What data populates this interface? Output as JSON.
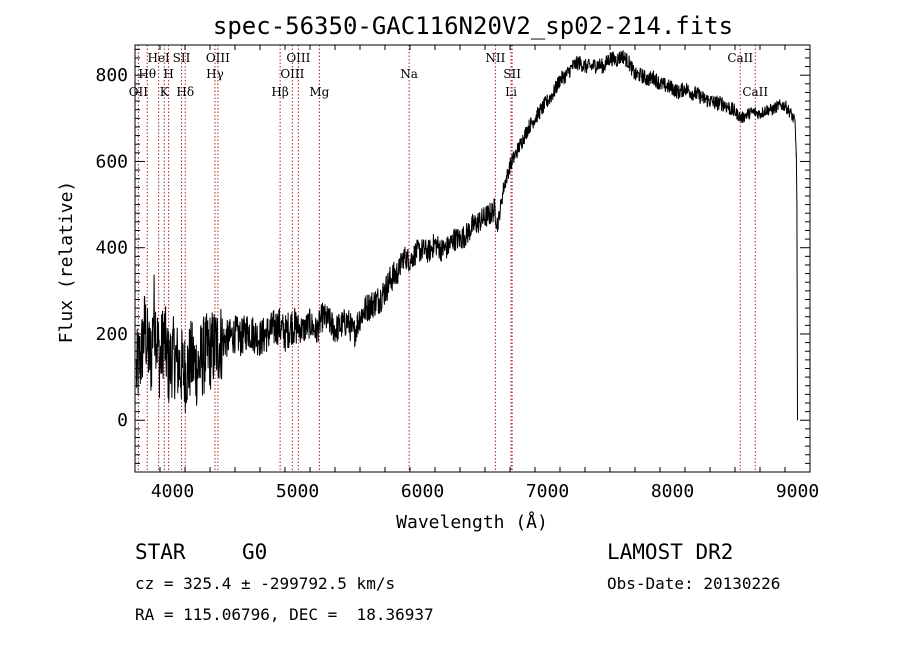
{
  "chart_data": {
    "type": "line",
    "title": "spec-56350-GAC116N20V2_sp02-214.fits",
    "xlabel": "Wavelength (Å)",
    "ylabel": "Flux (relative)",
    "xlim": [
      3700,
      9100
    ],
    "ylim": [
      -120,
      870
    ],
    "xticks": [
      4000,
      5000,
      6000,
      7000,
      8000,
      9000
    ],
    "yticks": [
      0,
      200,
      400,
      600,
      800
    ],
    "x_tick_labels": [
      "4000",
      "5000",
      "6000",
      "7000",
      "8000",
      "9000"
    ],
    "y_tick_labels": [
      "0",
      "200",
      "400",
      "600",
      "800"
    ],
    "grid": false,
    "series": [
      {
        "x": [
          3710,
          3750,
          3780,
          3800,
          3830,
          3850,
          3880,
          3900,
          3930,
          3950,
          3970,
          4000,
          4050,
          4100,
          4150,
          4200,
          4250,
          4300,
          4340,
          4380,
          4450,
          4500,
          4550,
          4600,
          4650,
          4700,
          4750,
          4800,
          4850,
          4900,
          4950,
          5000,
          5050,
          5100,
          5150,
          5200,
          5250,
          5300,
          5350,
          5400,
          5450,
          5500,
          5550,
          5600,
          5650,
          5700,
          5750,
          5800,
          5850,
          5900,
          5950,
          6000,
          6050,
          6100,
          6150,
          6200,
          6250,
          6300,
          6350,
          6400,
          6450,
          6500,
          6550,
          6580,
          6600,
          6650,
          6700,
          6750,
          6800,
          6850,
          6900,
          6950,
          7000,
          7050,
          7100,
          7150,
          7200,
          7250,
          7300,
          7350,
          7400,
          7450,
          7500,
          7550,
          7600,
          7650,
          7700,
          7750,
          7800,
          7850,
          7900,
          7950,
          8000,
          8050,
          8100,
          8150,
          8200,
          8250,
          8300,
          8350,
          8400,
          8450,
          8500,
          8550,
          8600,
          8650,
          8700,
          8750,
          8800,
          8850,
          8900,
          8950,
          8980,
          8990,
          8995,
          9000
        ],
        "values": [
          110,
          150,
          220,
          170,
          140,
          260,
          180,
          130,
          200,
          160,
          120,
          150,
          130,
          110,
          140,
          120,
          150,
          160,
          170,
          180,
          190,
          200,
          190,
          210,
          200,
          190,
          200,
          210,
          220,
          200,
          220,
          215,
          210,
          225,
          205,
          240,
          230,
          210,
          220,
          230,
          200,
          240,
          260,
          270,
          280,
          300,
          330,
          340,
          380,
          370,
          390,
          395,
          390,
          410,
          395,
          400,
          420,
          420,
          430,
          450,
          460,
          470,
          480,
          490,
          450,
          540,
          590,
          620,
          650,
          680,
          700,
          720,
          740,
          760,
          790,
          800,
          820,
          830,
          820,
          820,
          825,
          820,
          840,
          835,
          845,
          830,
          800,
          800,
          790,
          795,
          780,
          775,
          770,
          760,
          770,
          760,
          755,
          745,
          740,
          735,
          735,
          725,
          715,
          700,
          710,
          715,
          710,
          720,
          720,
          730,
          730,
          710,
          690,
          620,
          500,
          0
        ]
      }
    ],
    "annotations": [
      {
        "label": "OII",
        "x": 3727,
        "row": 3
      },
      {
        "label": "Hθ",
        "x": 3798,
        "row": 2
      },
      {
        "label": "HeI",
        "x": 3889,
        "row": 1
      },
      {
        "label": "K",
        "x": 3934,
        "row": 3
      },
      {
        "label": "SII",
        "x": 4072,
        "row": 1
      },
      {
        "label": "H",
        "x": 3969,
        "row": 2
      },
      {
        "label": "Hδ",
        "x": 4102,
        "row": 3
      },
      {
        "label": "OIII",
        "x": 4363,
        "row": 1
      },
      {
        "label": "Hγ",
        "x": 4340,
        "row": 2
      },
      {
        "label": "Hβ",
        "x": 4861,
        "row": 3
      },
      {
        "label": "OIII",
        "x": 4959,
        "row": 2
      },
      {
        "label": "OIII",
        "x": 5007,
        "row": 1
      },
      {
        "label": "Mg",
        "x": 5175,
        "row": 3
      },
      {
        "label": "Na",
        "x": 5893,
        "row": 2
      },
      {
        "label": "NII",
        "x": 6583,
        "row": 1
      },
      {
        "label": "SII",
        "x": 6717,
        "row": 2
      },
      {
        "label": "Li",
        "x": 6708,
        "row": 3
      },
      {
        "label": "CaII",
        "x": 8542,
        "row": 1
      },
      {
        "label": "CaII",
        "x": 8662,
        "row": 3
      }
    ],
    "colors": {
      "line": "#000000",
      "marker_lines": "#b22222"
    }
  },
  "info": {
    "type_label": "STAR",
    "subclass": "G0",
    "survey": "LAMOST DR2",
    "cz_line": "cz = 325.4 ± -299792.5 km/s",
    "obs_date_line": "Obs-Date: 20130226",
    "coords_line": "RA = 115.06796, DEC =  18.36937"
  }
}
